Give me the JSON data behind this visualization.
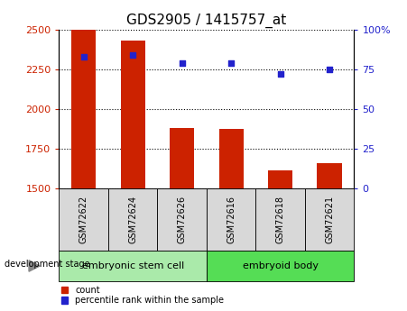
{
  "title": "GDS2905 / 1415757_at",
  "samples": [
    "GSM72622",
    "GSM72624",
    "GSM72626",
    "GSM72616",
    "GSM72618",
    "GSM72621"
  ],
  "counts": [
    2500,
    2430,
    1880,
    1875,
    1610,
    1655
  ],
  "percentiles": [
    83,
    84,
    79,
    79,
    72,
    75
  ],
  "ylim_left": [
    1500,
    2500
  ],
  "ylim_right": [
    0,
    100
  ],
  "yticks_left": [
    1500,
    1750,
    2000,
    2250,
    2500
  ],
  "yticks_right": [
    0,
    25,
    50,
    75,
    100
  ],
  "bar_color": "#cc2200",
  "dot_color": "#2222cc",
  "grid_color": "#000000",
  "title_fontsize": 11,
  "tick_fontsize": 8,
  "groups": [
    {
      "label": "embryonic stem cell",
      "indices": [
        0,
        1,
        2
      ],
      "color": "#aaeaaa"
    },
    {
      "label": "embryoid body",
      "indices": [
        3,
        4,
        5
      ],
      "color": "#55dd55"
    }
  ],
  "dev_stage_label": "development stage",
  "legend_count_label": "count",
  "legend_percentile_label": "percentile rank within the sample",
  "sample_bg_color": "#d8d8d8",
  "bar_width": 0.5
}
